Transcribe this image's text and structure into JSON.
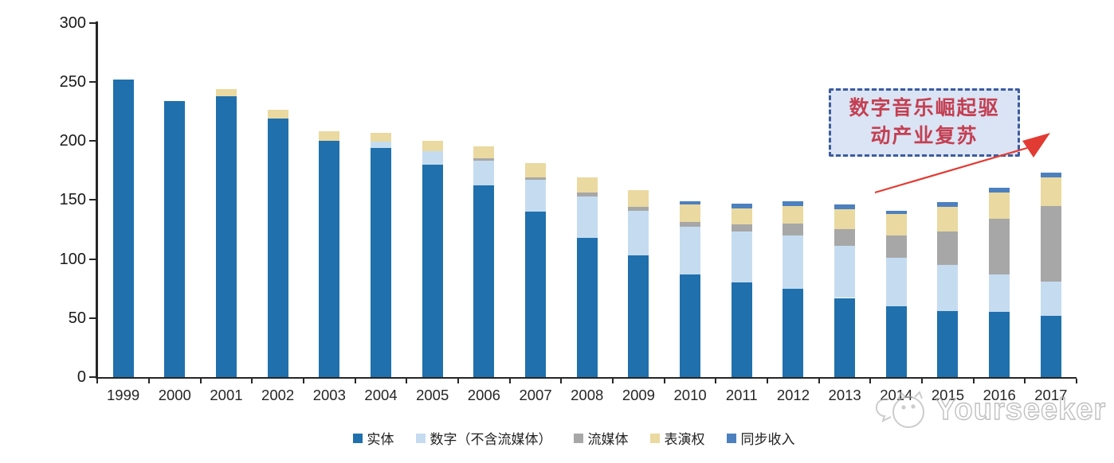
{
  "chart_data": {
    "type": "bar",
    "stacked": true,
    "title": "",
    "categories": [
      "1999",
      "2000",
      "2001",
      "2002",
      "2003",
      "2004",
      "2005",
      "2006",
      "2007",
      "2008",
      "2009",
      "2010",
      "2011",
      "2012",
      "2013",
      "2014",
      "2015",
      "2016",
      "2017"
    ],
    "series": [
      {
        "name": "实体",
        "color": "#2070AD",
        "values": [
          252,
          234,
          238,
          219,
          200,
          194,
          180,
          162,
          140,
          118,
          103,
          87,
          80,
          75,
          67,
          60,
          56,
          55,
          52
        ]
      },
      {
        "name": "数字（不含流媒体）",
        "color": "#C5DCF0",
        "values": [
          0,
          0,
          0,
          0,
          0,
          5,
          11,
          21,
          27,
          35,
          38,
          40,
          43,
          45,
          44,
          41,
          39,
          32,
          29
        ]
      },
      {
        "name": "流媒体",
        "color": "#A7A7A7",
        "values": [
          0,
          0,
          0,
          0,
          0,
          0,
          0,
          2,
          2,
          3,
          3,
          4,
          6,
          10,
          14,
          19,
          28,
          47,
          64
        ]
      },
      {
        "name": "表演权",
        "color": "#EAD9A0",
        "values": [
          0,
          0,
          6,
          7,
          8,
          8,
          9,
          10,
          12,
          13,
          14,
          15,
          14,
          15,
          17,
          18,
          21,
          22,
          24
        ]
      },
      {
        "name": "同步收入",
        "color": "#4D80BE",
        "values": [
          0,
          0,
          0,
          0,
          0,
          0,
          0,
          0,
          0,
          0,
          0,
          3,
          4,
          4,
          4,
          3,
          4,
          4,
          4
        ]
      }
    ],
    "ylim": [
      0,
      300
    ],
    "y_ticks": [
      0,
      50,
      100,
      150,
      200,
      250,
      300
    ],
    "xlabel": "",
    "ylabel": "",
    "grid": false,
    "legend_position": "bottom"
  },
  "annotation": {
    "line1": "数字音乐崛起驱",
    "line2": "动产业复苏",
    "text_color": "#C43F52",
    "fill_color": "#DAE4F4",
    "border_color": "#3D5C9E",
    "arrow_color": "#E23B33"
  },
  "watermark": {
    "text": "Yourseeker",
    "color": "#b0b0b0"
  }
}
